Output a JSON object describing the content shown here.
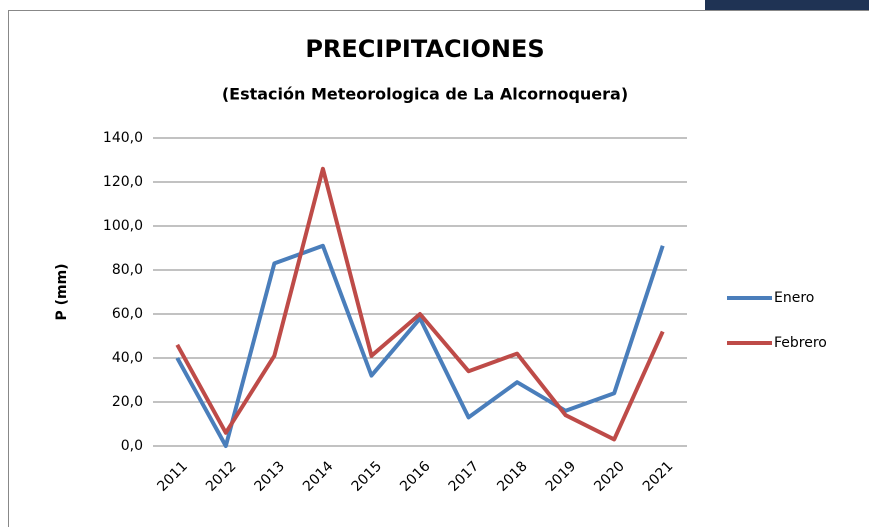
{
  "chart_data": {
    "type": "line",
    "title": "PRECIPITACIONES",
    "subtitle": "(Estación Meteorologica de La Alcornoquera)",
    "y_label": "P (mm)",
    "categories": [
      "2011",
      "2012",
      "2013",
      "2014",
      "2015",
      "2016",
      "2017",
      "2018",
      "2019",
      "2020",
      "2021"
    ],
    "series": [
      {
        "name": "Enero",
        "color": "#4a7ebb",
        "values": [
          40,
          0,
          83,
          91,
          32,
          58,
          13,
          29,
          16,
          24,
          91
        ]
      },
      {
        "name": "Febrero",
        "color": "#be4b48",
        "values": [
          46,
          6,
          41,
          126,
          41,
          60,
          34,
          42,
          14,
          3,
          52
        ]
      }
    ],
    "ylim": [
      0,
      140
    ],
    "yticks": [
      {
        "value": 0,
        "label": "0,0"
      },
      {
        "value": 20,
        "label": "20,0"
      },
      {
        "value": 40,
        "label": "40,0"
      },
      {
        "value": 60,
        "label": "60,0"
      },
      {
        "value": 80,
        "label": "80,0"
      },
      {
        "value": 100,
        "label": "100,0"
      },
      {
        "value": 120,
        "label": "120,0"
      },
      {
        "value": 140,
        "label": "140,0"
      }
    ],
    "grid": true,
    "legend": "right"
  }
}
